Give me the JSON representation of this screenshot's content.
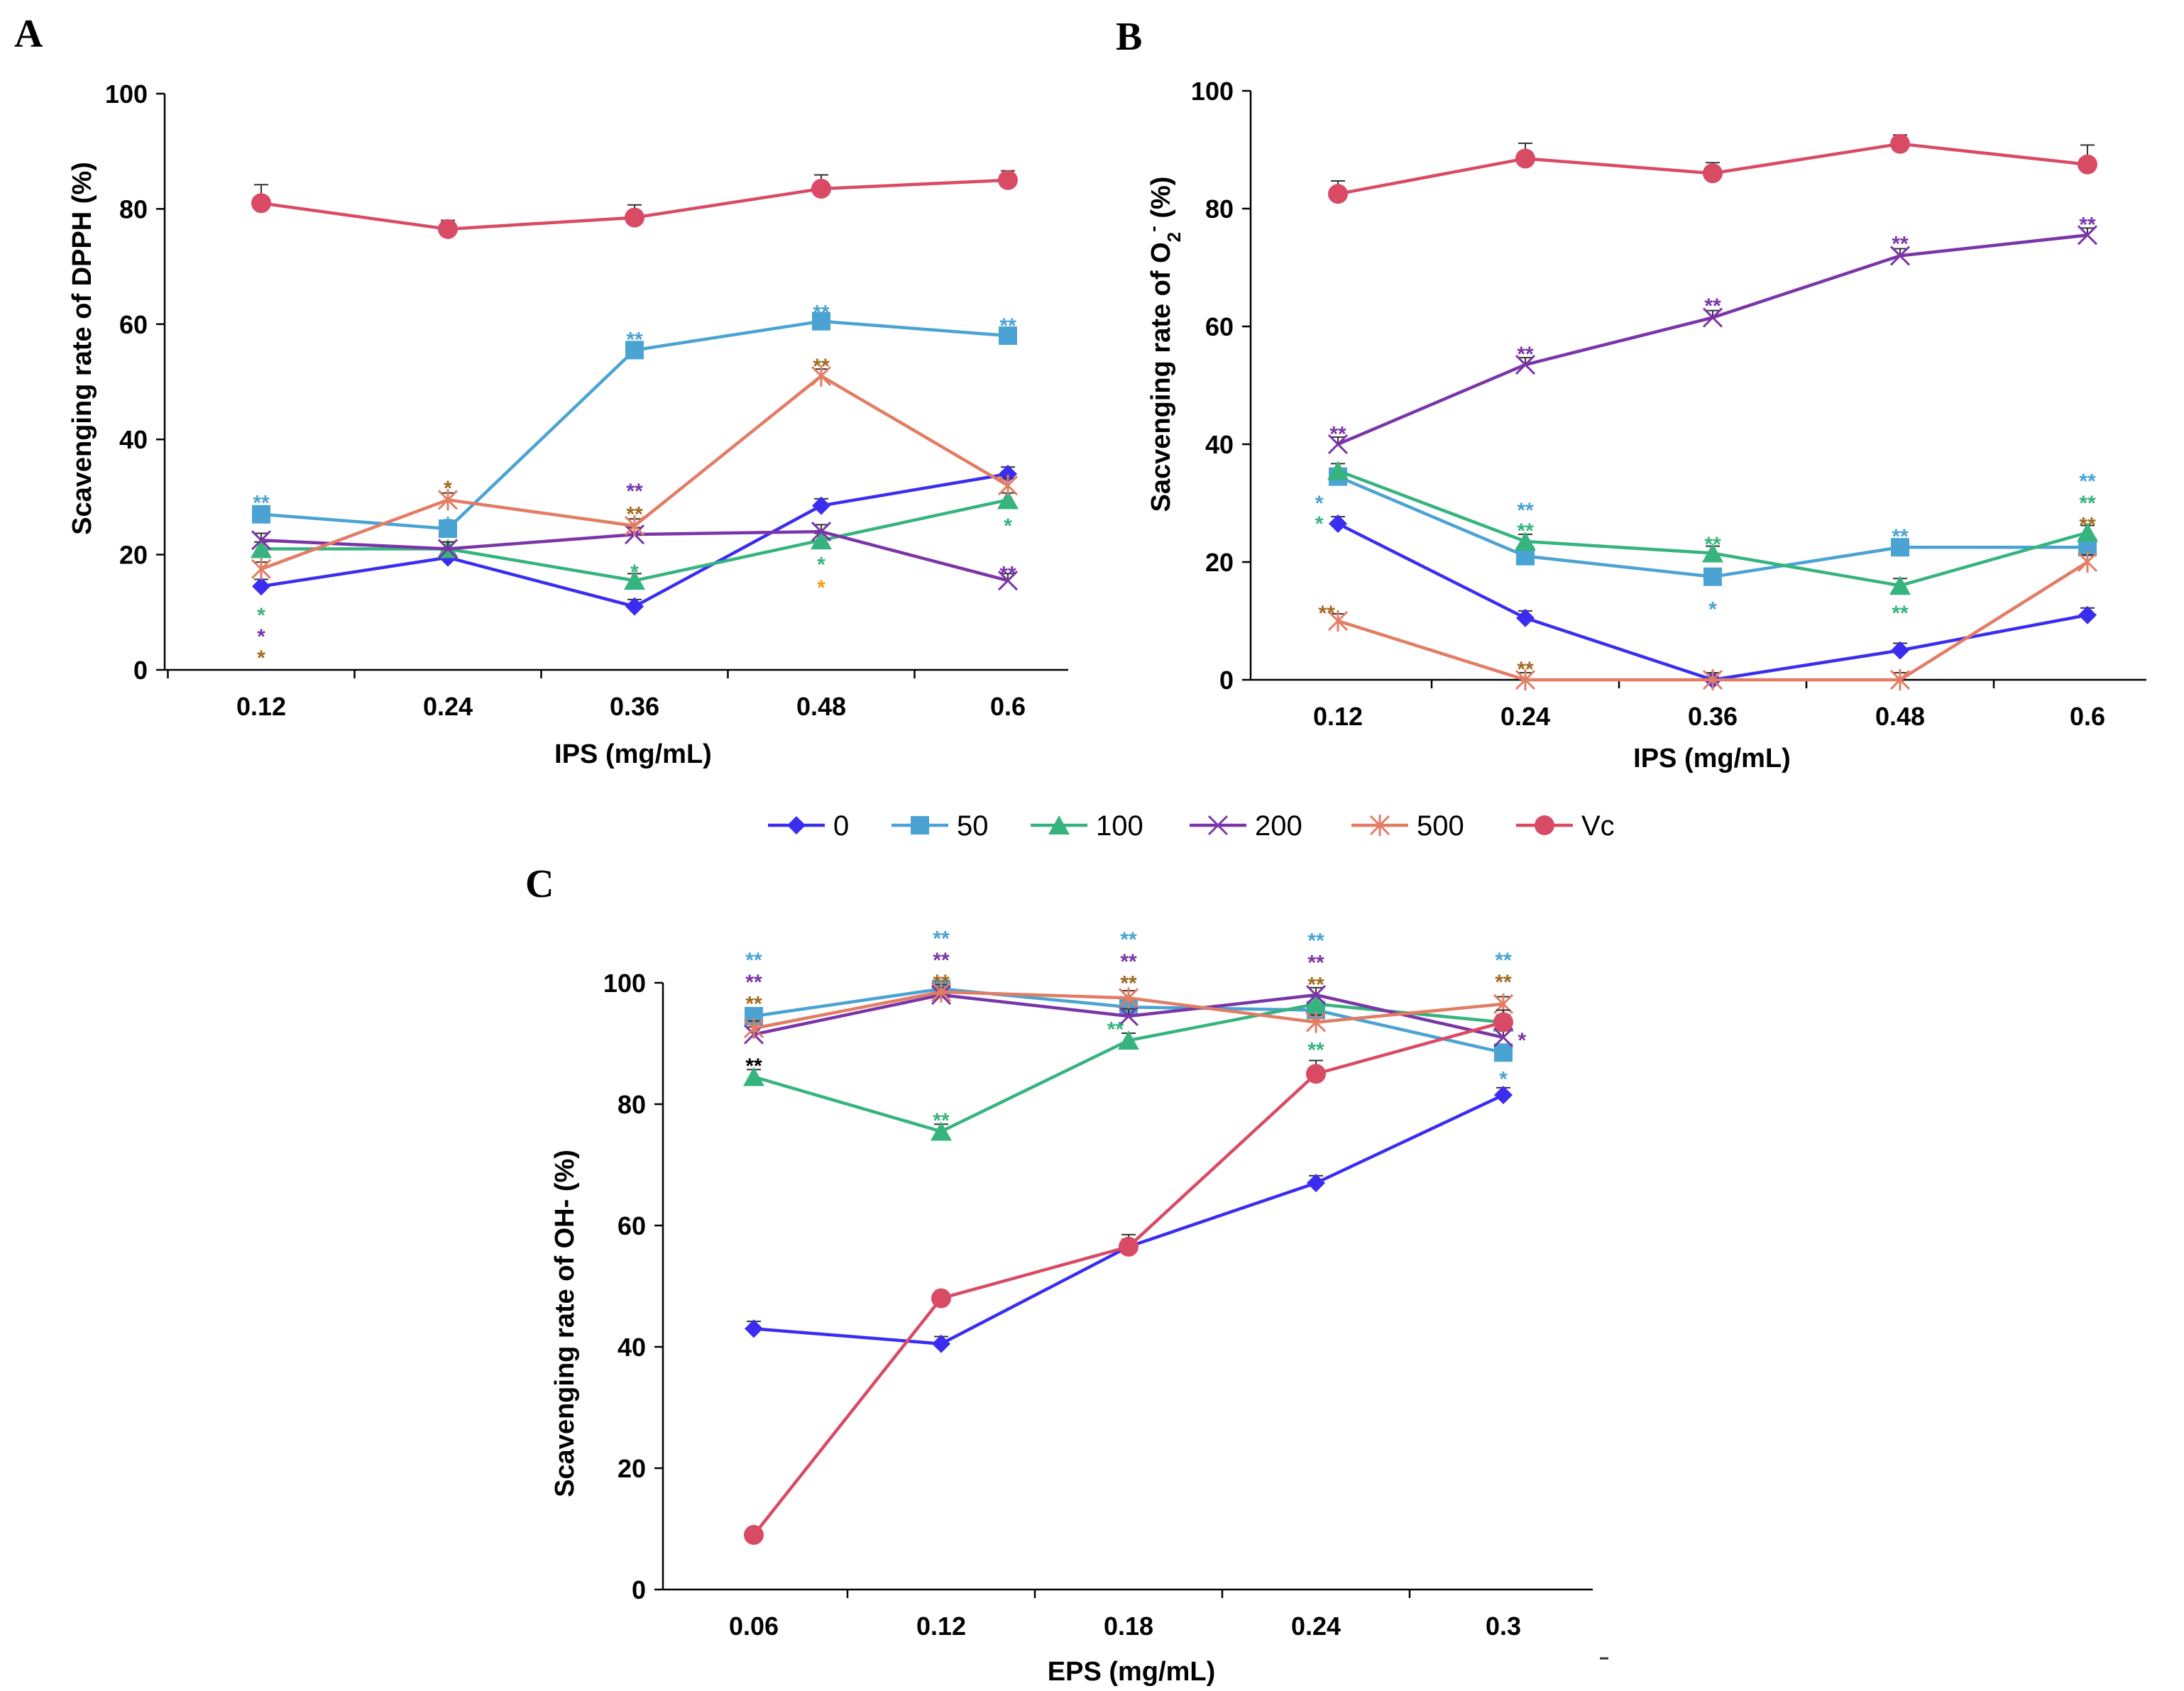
{
  "colors": {
    "s0": "#3a2df0",
    "s50": "#4aa3d3",
    "s100": "#36b37e",
    "s200": "#7a35a8",
    "s500": "#e27c63",
    "vc": "#d94a64",
    "brown": "#a06a1e",
    "orange": "#f39c12",
    "black": "#000000",
    "axis": "#000000"
  },
  "legend": [
    {
      "key": "s0",
      "label": "0",
      "marker": "diamond"
    },
    {
      "key": "s50",
      "label": "50",
      "marker": "square"
    },
    {
      "key": "s100",
      "label": "100",
      "marker": "triangle"
    },
    {
      "key": "s200",
      "label": "200",
      "marker": "x"
    },
    {
      "key": "s500",
      "label": "500",
      "marker": "star"
    },
    {
      "key": "vc",
      "label": "Vc",
      "marker": "circle"
    }
  ],
  "chart_data": [
    {
      "type": "line",
      "panel": "A",
      "ylabel": "Scavenging rate of  DPPH (%)",
      "xlabel": "IPS  (mg/mL)",
      "categories": [
        "0.12",
        "0.24",
        "0.36",
        "0.48",
        "0.6"
      ],
      "ylim": [
        0,
        100
      ],
      "yticks": [
        0,
        20,
        40,
        60,
        80,
        100
      ],
      "series": [
        {
          "key": "s0",
          "name": "0",
          "values": [
            14.5,
            19.5,
            11,
            28.5,
            34
          ]
        },
        {
          "key": "s50",
          "name": "50",
          "values": [
            27,
            24.5,
            55.5,
            60.5,
            58
          ]
        },
        {
          "key": "s100",
          "name": "100",
          "values": [
            21,
            21,
            15.5,
            22.5,
            29.5
          ]
        },
        {
          "key": "s200",
          "name": "200",
          "values": [
            22.5,
            21,
            23.5,
            24,
            15.5
          ]
        },
        {
          "key": "s500",
          "name": "500",
          "values": [
            17.5,
            29.5,
            25,
            51,
            32
          ]
        },
        {
          "key": "vc",
          "name": "Vc",
          "values": [
            81,
            76.5,
            78.5,
            83.5,
            85
          ],
          "err": [
            3.2,
            1.5,
            2.2,
            2.4,
            1.6
          ]
        }
      ],
      "annotations": [
        {
          "i": 0,
          "y": 29.5,
          "text": "**",
          "color": "s50"
        },
        {
          "i": 0,
          "y": 10,
          "text": "*",
          "color": "s100"
        },
        {
          "i": 0,
          "y": 6.3,
          "text": "*",
          "color": "s200"
        },
        {
          "i": 0,
          "y": 2.6,
          "text": "*",
          "color": "brown"
        },
        {
          "i": 1,
          "y": 32,
          "text": "*",
          "color": "brown"
        },
        {
          "i": 1,
          "y": 25.8,
          "text": "*",
          "color": "s50"
        },
        {
          "i": 2,
          "y": 57.8,
          "text": "**",
          "color": "s50"
        },
        {
          "i": 2,
          "y": 31.5,
          "text": "**",
          "color": "s200"
        },
        {
          "i": 2,
          "y": 27.5,
          "text": "**",
          "color": "brown"
        },
        {
          "i": 2,
          "y": 17.5,
          "text": "*",
          "color": "s100"
        },
        {
          "i": 3,
          "y": 62.5,
          "text": "**",
          "color": "s50"
        },
        {
          "i": 3,
          "y": 53.2,
          "text": "**",
          "color": "brown"
        },
        {
          "i": 3,
          "y": 18.8,
          "text": "*",
          "color": "s100"
        },
        {
          "i": 3,
          "y": 14.8,
          "text": "*",
          "color": "orange"
        },
        {
          "i": 4,
          "y": 60.2,
          "text": "**",
          "color": "s50"
        },
        {
          "i": 4,
          "y": 25.5,
          "text": "*",
          "color": "s100"
        },
        {
          "i": 4,
          "y": 17.2,
          "text": "**",
          "color": "s200"
        }
      ]
    },
    {
      "type": "line",
      "panel": "B",
      "ylabel": "Sacvenging rate of O",
      "ylabel_sub": "2",
      "ylabel_sup": "-",
      "ylabel_tail": " (%)",
      "xlabel": "IPS (mg/mL)",
      "categories": [
        "0.12",
        "0.24",
        "0.36",
        "0.48",
        "0.6"
      ],
      "ylim": [
        0,
        100
      ],
      "yticks": [
        0,
        20,
        40,
        60,
        80,
        100
      ],
      "series": [
        {
          "key": "s0",
          "name": "0",
          "values": [
            26.5,
            10.5,
            0,
            5,
            11
          ]
        },
        {
          "key": "s50",
          "name": "50",
          "values": [
            34.5,
            21,
            17.5,
            22.5,
            22.5
          ]
        },
        {
          "key": "s100",
          "name": "100",
          "values": [
            35.5,
            23.5,
            21.5,
            16,
            25
          ]
        },
        {
          "key": "s200",
          "name": "200",
          "values": [
            40,
            53.5,
            61.5,
            72,
            75.5
          ]
        },
        {
          "key": "s500",
          "name": "500",
          "values": [
            10,
            0,
            0,
            0,
            20
          ]
        },
        {
          "key": "vc",
          "name": "Vc",
          "values": [
            82.5,
            88.5,
            86,
            91,
            87.5
          ],
          "err": [
            2.2,
            2.6,
            1.8,
            1.5,
            3.3
          ]
        }
      ],
      "annotations": [
        {
          "i": 0,
          "y": 42.2,
          "text": "**",
          "color": "s200"
        },
        {
          "i": 0,
          "y": 30.5,
          "text": "*",
          "color": "s50",
          "dx": -0.1
        },
        {
          "i": 0,
          "y": 27,
          "text": "*",
          "color": "s100",
          "dx": -0.1
        },
        {
          "i": 0,
          "y": 11.8,
          "text": "**",
          "color": "brown",
          "dx": -0.06
        },
        {
          "i": 1,
          "y": 55.8,
          "text": "**",
          "color": "s200"
        },
        {
          "i": 1,
          "y": 29.3,
          "text": "**",
          "color": "s50"
        },
        {
          "i": 1,
          "y": 25.8,
          "text": "**",
          "color": "s100"
        },
        {
          "i": 1,
          "y": 2.3,
          "text": "**",
          "color": "brown"
        },
        {
          "i": 2,
          "y": 64,
          "text": "**",
          "color": "s200"
        },
        {
          "i": 2,
          "y": 23.5,
          "text": "**",
          "color": "s100"
        },
        {
          "i": 2,
          "y": 12.5,
          "text": "*",
          "color": "s50"
        },
        {
          "i": 3,
          "y": 74.5,
          "text": "**",
          "color": "s200"
        },
        {
          "i": 3,
          "y": 24.8,
          "text": "**",
          "color": "s50"
        },
        {
          "i": 3,
          "y": 11.8,
          "text": "**",
          "color": "s100"
        },
        {
          "i": 4,
          "y": 77.8,
          "text": "**",
          "color": "s200"
        },
        {
          "i": 4,
          "y": 34.2,
          "text": "**",
          "color": "s50"
        },
        {
          "i": 4,
          "y": 30.5,
          "text": "**",
          "color": "s100"
        },
        {
          "i": 4,
          "y": 26.8,
          "text": "**",
          "color": "brown"
        }
      ]
    },
    {
      "type": "line",
      "panel": "C",
      "ylabel": "Scavenging rate of OH- (%)",
      "xlabel": "EPS (mg/mL)",
      "categories": [
        "0.06",
        "0.12",
        "0.18",
        "0.24",
        "0.3"
      ],
      "ylim": [
        0,
        100
      ],
      "yticks": [
        0,
        20,
        40,
        60,
        80,
        100
      ],
      "series": [
        {
          "key": "s0",
          "name": "0",
          "values": [
            43,
            40.5,
            56.5,
            67,
            81.5
          ]
        },
        {
          "key": "s50",
          "name": "50",
          "values": [
            94.5,
            99,
            96,
            95.5,
            88.5
          ]
        },
        {
          "key": "s100",
          "name": "100",
          "values": [
            84.5,
            75.5,
            90.5,
            96.5,
            93.5
          ]
        },
        {
          "key": "s200",
          "name": "200",
          "values": [
            91.5,
            98,
            94.5,
            98,
            91
          ]
        },
        {
          "key": "s500",
          "name": "500",
          "values": [
            92.5,
            98.5,
            97.5,
            93.5,
            96.5
          ]
        },
        {
          "key": "vc",
          "name": "Vc",
          "values": [
            9,
            48,
            56.5,
            85,
            93.5
          ],
          "err": [
            0,
            0,
            2,
            2.2,
            2
          ]
        }
      ],
      "annotations": [
        {
          "i": 0,
          "y": 104.2,
          "text": "**",
          "color": "s50"
        },
        {
          "i": 0,
          "y": 100.6,
          "text": "**",
          "color": "s200"
        },
        {
          "i": 0,
          "y": 97,
          "text": "**",
          "color": "brown"
        },
        {
          "i": 0,
          "y": 86.8,
          "text": "**",
          "color": "black"
        },
        {
          "i": 1,
          "y": 107.8,
          "text": "**",
          "color": "s50"
        },
        {
          "i": 1,
          "y": 104.2,
          "text": "**",
          "color": "s200"
        },
        {
          "i": 1,
          "y": 100.6,
          "text": "**",
          "color": "brown"
        },
        {
          "i": 1,
          "y": 77.8,
          "text": "**",
          "color": "s100"
        },
        {
          "i": 2,
          "y": 107.6,
          "text": "**",
          "color": "s50"
        },
        {
          "i": 2,
          "y": 104,
          "text": "**",
          "color": "s200"
        },
        {
          "i": 2,
          "y": 100.4,
          "text": "**",
          "color": "brown"
        },
        {
          "i": 2,
          "y": 92.8,
          "text": "**",
          "color": "s100",
          "dx": -0.07
        },
        {
          "i": 3,
          "y": 107.4,
          "text": "**",
          "color": "s50"
        },
        {
          "i": 3,
          "y": 103.8,
          "text": "**",
          "color": "s200"
        },
        {
          "i": 3,
          "y": 100.2,
          "text": "**",
          "color": "brown"
        },
        {
          "i": 3,
          "y": 89.4,
          "text": "**",
          "color": "s100"
        },
        {
          "i": 4,
          "y": 104.2,
          "text": "**",
          "color": "s50"
        },
        {
          "i": 4,
          "y": 100.6,
          "text": "**",
          "color": "brown"
        },
        {
          "i": 4,
          "y": 91,
          "text": "*",
          "color": "s200",
          "dx": 0.1
        },
        {
          "i": 4,
          "y": 84.6,
          "text": "*",
          "color": "s50"
        }
      ]
    }
  ]
}
